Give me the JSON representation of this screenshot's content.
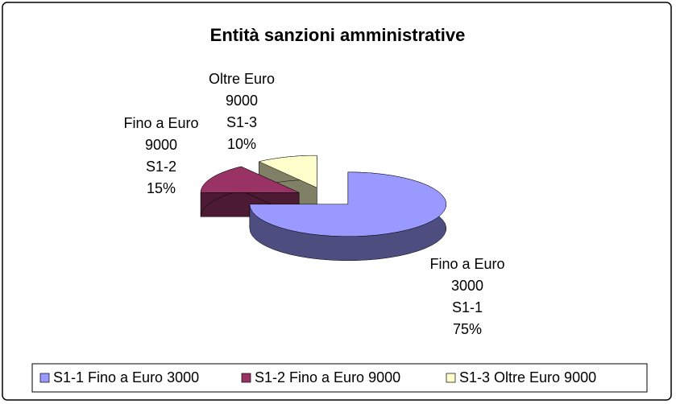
{
  "chart_data": {
    "type": "pie3d",
    "title": "Entità sanzioni amministrative",
    "categories": [
      "S1-1 Fino a Euro 3000",
      "S1-2 Fino a Euro 9000",
      "S1-3 Oltre Euro 9000"
    ],
    "label_names": [
      "Fino a Euro 3000",
      "Fino a Euro 9000",
      "Oltre Euro 9000"
    ],
    "label_codes": [
      "S1-1",
      "S1-2",
      "S1-3"
    ],
    "values": [
      75,
      15,
      10
    ],
    "value_labels": [
      "75%",
      "15%",
      "10%"
    ],
    "colors": [
      "#9999ff",
      "#993366",
      "#ffffcc"
    ],
    "legend": "bottom"
  }
}
